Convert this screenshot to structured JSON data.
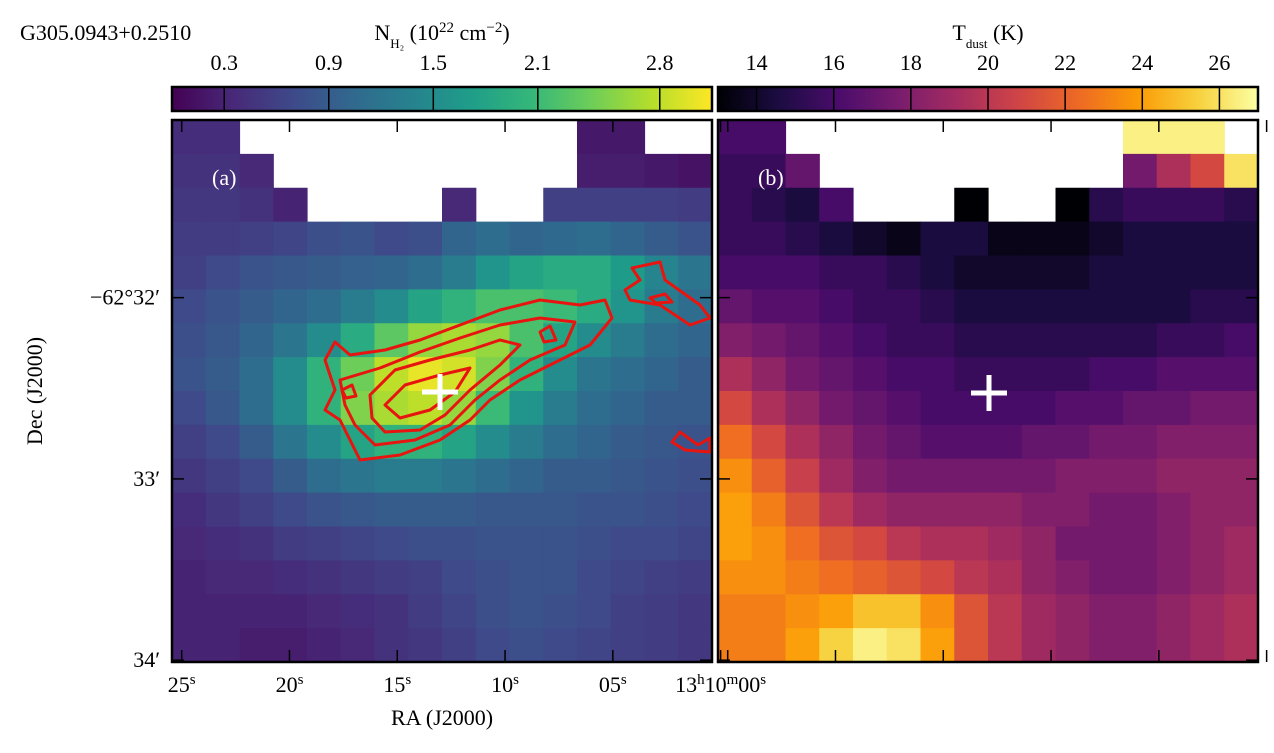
{
  "title": "G305.0943+0.2510",
  "chart_data": [
    {
      "type": "heatmap",
      "panel_label": "(a)",
      "colormap": "viridis",
      "colorbar": {
        "label": [
          {
            "text": "N"
          },
          {
            "text": "H₂",
            "shift": "sub"
          },
          {
            "text": " (10"
          },
          {
            "text": "22",
            "shift": "super"
          },
          {
            "text": " cm"
          },
          {
            "text": "−2",
            "shift": "super"
          },
          {
            "text": ")"
          }
        ],
        "lim": [
          0,
          3.1
        ],
        "ticks": [
          0.3,
          0.9,
          1.5,
          2.1,
          2.8
        ]
      },
      "xlabel": "RA (J2000)",
      "ylabel": "Dec (J2000)",
      "xlim": [
        25.45,
        0.4
      ],
      "xticks": [
        {
          "value": 25,
          "label": [
            {
              "text": "25"
            },
            {
              "text": "s",
              "shift": "super"
            }
          ]
        },
        {
          "value": 20,
          "label": [
            {
              "text": "20"
            },
            {
              "text": "s",
              "shift": "super"
            }
          ]
        },
        {
          "value": 15,
          "label": [
            {
              "text": "15"
            },
            {
              "text": "s",
              "shift": "super"
            }
          ]
        },
        {
          "value": 10,
          "label": [
            {
              "text": "10"
            },
            {
              "text": "s",
              "shift": "super"
            }
          ]
        },
        {
          "value": 5,
          "label": [
            {
              "text": "05"
            },
            {
              "text": "s",
              "shift": "super"
            }
          ]
        },
        {
          "value": 0,
          "label": [
            {
              "text": "13"
            },
            {
              "text": "h",
              "shift": "super"
            },
            {
              "text": "10"
            },
            {
              "text": "m",
              "shift": "super"
            },
            {
              "text": "00"
            },
            {
              "text": "s",
              "shift": "super"
            }
          ]
        }
      ],
      "ylim": [
        31.02,
        34.01
      ],
      "yticks": [
        {
          "value": 32,
          "label": [
            {
              "text": "−62°32′"
            }
          ]
        },
        {
          "value": 33,
          "label": [
            {
              "text": "33′"
            }
          ]
        },
        {
          "value": 34,
          "label": [
            {
              "text": "34′"
            }
          ]
        }
      ],
      "values": [
        [
          0.4,
          0.4,
          null,
          null,
          null,
          null,
          null,
          null,
          null,
          null,
          null,
          null,
          0.2,
          0.2,
          null,
          null
        ],
        [
          0.45,
          0.45,
          0.35,
          null,
          null,
          null,
          null,
          null,
          null,
          null,
          null,
          null,
          0.25,
          0.25,
          0.2,
          0.15
        ],
        [
          0.5,
          0.5,
          0.45,
          0.3,
          null,
          null,
          null,
          null,
          0.35,
          null,
          null,
          0.6,
          0.6,
          0.6,
          0.6,
          0.55
        ],
        [
          0.55,
          0.55,
          0.6,
          0.65,
          0.75,
          0.8,
          0.7,
          0.75,
          1.0,
          1.1,
          1.0,
          1.05,
          1.1,
          1.0,
          0.9,
          0.8
        ],
        [
          0.6,
          0.7,
          0.8,
          0.85,
          0.9,
          0.95,
          1.0,
          1.1,
          1.3,
          1.6,
          1.8,
          1.9,
          1.9,
          1.7,
          1.4,
          1.2
        ],
        [
          0.7,
          0.8,
          0.9,
          1.0,
          1.1,
          1.3,
          1.5,
          1.8,
          2.0,
          2.2,
          2.2,
          2.1,
          1.9,
          1.6,
          1.3,
          1.1
        ],
        [
          0.75,
          0.85,
          1.0,
          1.2,
          1.5,
          1.9,
          2.3,
          2.6,
          2.7,
          2.6,
          2.2,
          1.8,
          1.5,
          1.3,
          1.1,
          1.0
        ],
        [
          0.8,
          0.9,
          1.1,
          1.5,
          2.0,
          2.4,
          2.8,
          3.0,
          2.9,
          2.5,
          2.0,
          1.5,
          1.2,
          1.1,
          1.0,
          0.9
        ],
        [
          0.7,
          0.85,
          1.1,
          1.5,
          2.0,
          2.5,
          2.7,
          2.8,
          2.6,
          2.1,
          1.6,
          1.3,
          1.1,
          1.0,
          0.9,
          0.9
        ],
        [
          0.6,
          0.7,
          0.9,
          1.2,
          1.5,
          1.8,
          2.0,
          2.0,
          1.8,
          1.5,
          1.3,
          1.1,
          1.0,
          0.9,
          0.85,
          0.8
        ],
        [
          0.5,
          0.6,
          0.7,
          0.9,
          1.1,
          1.2,
          1.3,
          1.3,
          1.2,
          1.1,
          1.0,
          0.9,
          0.9,
          0.85,
          0.8,
          0.75
        ],
        [
          0.4,
          0.5,
          0.6,
          0.7,
          0.8,
          0.85,
          0.9,
          0.9,
          0.9,
          0.85,
          0.85,
          0.85,
          0.8,
          0.8,
          0.75,
          0.7
        ],
        [
          0.35,
          0.4,
          0.45,
          0.55,
          0.6,
          0.65,
          0.7,
          0.75,
          0.75,
          0.8,
          0.8,
          0.8,
          0.75,
          0.7,
          0.7,
          0.65
        ],
        [
          0.3,
          0.35,
          0.35,
          0.4,
          0.45,
          0.5,
          0.55,
          0.6,
          0.7,
          0.75,
          0.8,
          0.8,
          0.7,
          0.65,
          0.6,
          0.55
        ],
        [
          0.3,
          0.3,
          0.3,
          0.3,
          0.35,
          0.4,
          0.45,
          0.55,
          0.65,
          0.75,
          0.8,
          0.75,
          0.7,
          0.6,
          0.55,
          0.5
        ],
        [
          0.3,
          0.3,
          0.25,
          0.25,
          0.3,
          0.35,
          0.45,
          0.5,
          0.6,
          0.7,
          0.75,
          0.7,
          0.65,
          0.6,
          0.55,
          0.5
        ]
      ]
    },
    {
      "type": "heatmap",
      "panel_label": "(b)",
      "colormap": "inferno",
      "colorbar": {
        "label": [
          {
            "text": "T"
          },
          {
            "text": "dust",
            "shift": "sub"
          },
          {
            "text": " (K)"
          }
        ],
        "lim": [
          13,
          27
        ],
        "ticks": [
          14,
          16,
          18,
          20,
          22,
          24,
          26
        ]
      },
      "values": [
        [
          16,
          16,
          null,
          null,
          null,
          null,
          null,
          null,
          null,
          null,
          null,
          null,
          26.5,
          26.5,
          26.5,
          null
        ],
        [
          15.5,
          15.5,
          17,
          null,
          null,
          null,
          null,
          null,
          null,
          null,
          null,
          null,
          17.5,
          19.5,
          21,
          26
        ],
        [
          15.5,
          15,
          14.5,
          16,
          null,
          null,
          null,
          13,
          null,
          null,
          13,
          15,
          15.5,
          15.5,
          15.5,
          15
        ],
        [
          15.5,
          15.5,
          15,
          14.5,
          14,
          13.5,
          14.5,
          14.5,
          13.5,
          13.5,
          13.5,
          14,
          14.5,
          14.5,
          14.5,
          14.5
        ],
        [
          16,
          16,
          16,
          15.5,
          15.5,
          15,
          14.5,
          14,
          14,
          14,
          14,
          14.5,
          14.5,
          14.5,
          14.5,
          14.5
        ],
        [
          17,
          16.5,
          16.5,
          16,
          15.5,
          15.5,
          15,
          14.5,
          14.5,
          14.5,
          14.5,
          14.5,
          14.5,
          14.5,
          15,
          15
        ],
        [
          18,
          17.5,
          17,
          16.5,
          16,
          15.5,
          15.5,
          15,
          15,
          15,
          15,
          15,
          15,
          15.5,
          15.5,
          16
        ],
        [
          19.5,
          18.5,
          17.5,
          17,
          16.5,
          16,
          16,
          15.5,
          15.5,
          15.5,
          15.5,
          16,
          16,
          16.5,
          16.5,
          16.5
        ],
        [
          21,
          19.5,
          18.5,
          17.5,
          17,
          16.5,
          16,
          16,
          16,
          16,
          16.5,
          16.5,
          17,
          17,
          17.5,
          17.5
        ],
        [
          22.5,
          21,
          19.5,
          18.5,
          17.5,
          17,
          16.5,
          16.5,
          16.5,
          17,
          17,
          17.5,
          17.5,
          18,
          18,
          18
        ],
        [
          23.5,
          22,
          20.5,
          19,
          18,
          17.5,
          17.5,
          17.5,
          17.5,
          17.5,
          18,
          18,
          18,
          18.5,
          18.5,
          18.5
        ],
        [
          24,
          23,
          21.5,
          20,
          19,
          18.5,
          18.5,
          18.5,
          18.5,
          18,
          18,
          17.5,
          17.5,
          18,
          18.5,
          18.5
        ],
        [
          24,
          23.5,
          22.5,
          21.5,
          21,
          20,
          19.5,
          19.5,
          19,
          18.5,
          17.5,
          17.5,
          17.5,
          18,
          18.5,
          19
        ],
        [
          23.5,
          23.5,
          23,
          22.5,
          22,
          21.5,
          21,
          20,
          19.5,
          18.5,
          18,
          17.5,
          17.5,
          18,
          18.5,
          19
        ],
        [
          23,
          23,
          23.5,
          24,
          25,
          25,
          23.5,
          21.5,
          20,
          19,
          18.5,
          18,
          18,
          18.5,
          19,
          19.5
        ],
        [
          23,
          23,
          24,
          25.5,
          26.5,
          26,
          24,
          21.5,
          20,
          19,
          18.5,
          18,
          18,
          18.5,
          19,
          19.5
        ]
      ]
    }
  ]
}
